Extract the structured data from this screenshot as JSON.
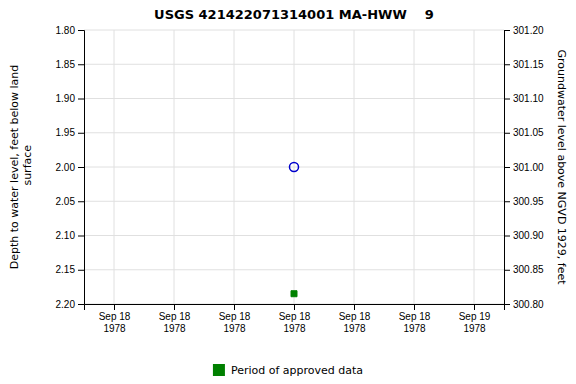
{
  "chart_data": {
    "type": "scatter",
    "title": "USGS 421422071314001 MA-HWW    9",
    "y_label": "Depth to water level, feet below land\n surface",
    "y2_label": "Groundwater level above NGVD 1929, feet",
    "categories": [
      "Sep 18\n1978",
      "Sep 18\n1978",
      "Sep 18\n1978",
      "Sep 18\n1978",
      "Sep 18\n1978",
      "Sep 18\n1978",
      "Sep 19\n1978"
    ],
    "series": [
      {
        "color": "#0000cc",
        "marker": "circle",
        "values": [
          null,
          null,
          null,
          2.0,
          null,
          null,
          null
        ]
      },
      {
        "name": "Period of approved data",
        "color": "#008000",
        "marker": "square",
        "values": [
          null,
          null,
          null,
          2.185,
          null,
          null,
          null
        ]
      }
    ],
    "ylim": [
      2.2,
      1.8
    ],
    "yticks": [
      {
        "value": 1.8,
        "label": "1.80"
      },
      1.85,
      {
        "value": 1.9,
        "label": "1.90"
      },
      1.95,
      {
        "value": 2.0,
        "label": "2.00"
      },
      2.05,
      {
        "value": 2.1,
        "label": "2.10"
      },
      2.15,
      {
        "value": 2.2,
        "label": "2.20"
      }
    ],
    "y2lim": [
      300.8,
      301.2
    ],
    "y2ticks": [
      {
        "value": 300.8,
        "label": "300.80"
      },
      300.85,
      {
        "value": 300.9,
        "label": "300.90"
      },
      300.95,
      {
        "value": 301.0,
        "label": "301.00"
      },
      301.05,
      {
        "value": 301.1,
        "label": "301.10"
      },
      301.15,
      {
        "value": 301.2,
        "label": "301.20"
      }
    ],
    "grid": true,
    "legend": "bottom"
  }
}
